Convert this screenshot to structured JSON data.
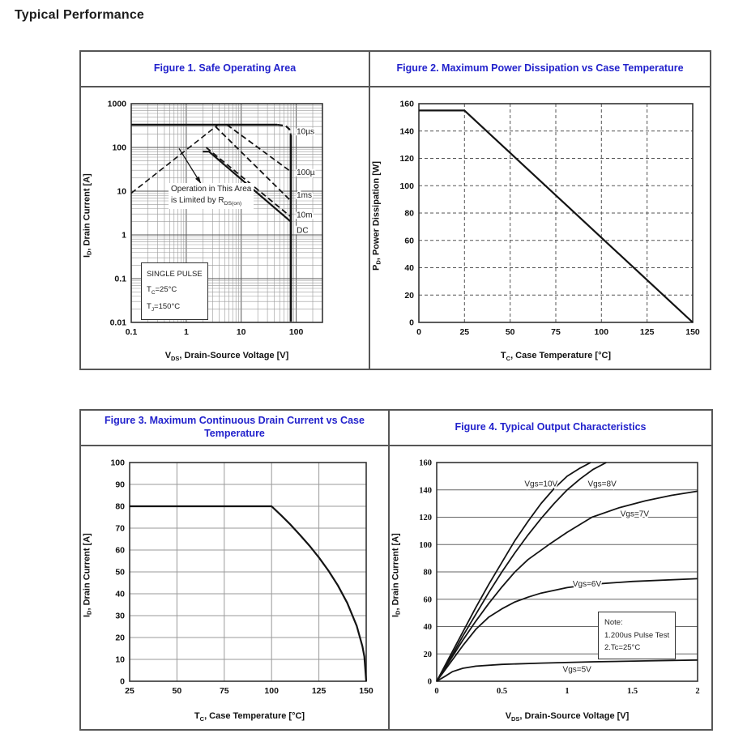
{
  "page": {
    "heading": "Typical Performance"
  },
  "figures": {
    "fig1": {
      "title": "Figure 1. Safe Operating Area",
      "xlabel": {
        "pre": "V",
        "sub": "DS",
        "rest": ", Drain-Source Voltage [V]"
      },
      "ylabel": {
        "pre": "I",
        "sub": "D",
        "rest": ", Drain Current [A]"
      },
      "annotation": {
        "line1": "Operation in This Area",
        "line2_pre": "is Limited by R",
        "line2_sub": "DS(on)"
      },
      "pulse_box": {
        "line1": "SINGLE PULSE",
        "line2_pre": "T",
        "line2_sub": "C",
        "line2_rest": "=25°C",
        "line3_pre": "T",
        "line3_sub": "J",
        "line3_rest": "=150°C"
      }
    },
    "fig2": {
      "title": "Figure 2. Maximum Power Dissipation vs Case Temperature",
      "xlabel": {
        "pre": "T",
        "sub": "C",
        "rest": ", Case Temperature [°C]"
      },
      "ylabel": {
        "pre": "P",
        "sub": "D",
        "rest": ", Power Dissipation [W]"
      }
    },
    "fig3": {
      "title": "Figure 3. Maximum Continuous Drain Current vs Case Temperature",
      "xlabel": {
        "pre": "T",
        "sub": "C",
        "rest": ", Case Temperature [°C]"
      },
      "ylabel": {
        "pre": "I",
        "sub": "D",
        "rest": ", Drain Current [A]"
      }
    },
    "fig4": {
      "title": "Figure 4. Typical Output Characteristics",
      "xlabel": {
        "pre": "V",
        "sub": "DS",
        "rest": ", Drain-Source Voltage [V]"
      },
      "ylabel": {
        "pre": "I",
        "sub": "D",
        "rest": ", Drain Current [A]"
      },
      "note_box": {
        "line1": "Note:",
        "line2": "1.200us Pulse Test",
        "line3": "2.Tc=25°C"
      }
    }
  },
  "chart_data": [
    {
      "id": "safe-operating-area",
      "type": "line",
      "title": "Figure 1. Safe Operating Area",
      "xlabel": "VDS, Drain-Source Voltage [V]",
      "ylabel": "ID, Drain Current [A]",
      "xscale": "log",
      "yscale": "log",
      "xlim": [
        0.1,
        300
      ],
      "ylim": [
        0.01,
        1000
      ],
      "xticks": [
        0.1,
        1,
        10,
        100
      ],
      "xtick_labels": [
        "0.1",
        "1",
        "10",
        "100"
      ],
      "yticks": [
        0.01,
        0.1,
        1,
        10,
        100,
        1000
      ],
      "ytick_labels": [
        "0.01",
        "0.1",
        "1",
        "10",
        "100",
        "1000"
      ],
      "grid": "log-minor",
      "legend": "none",
      "annotations": [
        "Operation in This Area is Limited by RDS(on)",
        "SINGLE PULSE TC=25°C TJ=150°C"
      ],
      "series": [
        {
          "name": "rdson-limit",
          "dash": true,
          "w": 1.6,
          "points": [
            [
              0.1,
              9
            ],
            [
              3.8,
              330
            ]
          ]
        },
        {
          "name": "pulse-cap",
          "dash": false,
          "w": 2.6,
          "points": [
            [
              0.1,
              330
            ],
            [
              45,
              330
            ]
          ]
        },
        {
          "name": "cap-knee",
          "dash": true,
          "w": 2.2,
          "points": [
            [
              45,
              330
            ],
            [
              64,
              312
            ],
            [
              75,
              262
            ],
            [
              80,
              190
            ]
          ]
        },
        {
          "name": "limit-100us",
          "dash": true,
          "w": 1.8,
          "points": [
            [
              5.5,
              330
            ],
            [
              80,
              28
            ]
          ]
        },
        {
          "name": "limit-1ms",
          "dash": true,
          "w": 1.8,
          "points": [
            [
              3.4,
              300
            ],
            [
              80,
              6
            ]
          ]
        },
        {
          "name": "limit-10ms",
          "dash": true,
          "w": 1.8,
          "points": [
            [
              2.3,
              100
            ],
            [
              80,
              2.6
            ]
          ]
        },
        {
          "name": "limit-dc",
          "dash": false,
          "w": 2.2,
          "points": [
            [
              2.0,
              80
            ],
            [
              2.6,
              80
            ],
            [
              80,
              2.0
            ]
          ]
        },
        {
          "name": "voltage-limit",
          "dash": false,
          "w": 2.8,
          "points": [
            [
              80,
              190
            ],
            [
              80,
              0.0105
            ]
          ]
        }
      ],
      "curve_labels": [
        {
          "text": "10µs",
          "fx": 0.865,
          "fy": 0.125
        },
        {
          "text": "100µ",
          "fx": 0.865,
          "fy": 0.3125
        },
        {
          "text": "1ms",
          "fx": 0.865,
          "fy": 0.417
        },
        {
          "text": "10m",
          "fx": 0.865,
          "fy": 0.507
        },
        {
          "text": "DC",
          "fx": 0.865,
          "fy": 0.578
        }
      ],
      "arrow": {
        "from_f": [
          0.25,
          0.205
        ],
        "to_f": [
          0.364,
          0.365
        ]
      }
    },
    {
      "id": "max-power-dissipation",
      "type": "line",
      "title": "Figure 2. Maximum Power Dissipation vs Case Temperature",
      "xlabel": "TC, Case Temperature [°C]",
      "ylabel": "PD, Power Dissipation [W]",
      "xlim": [
        0,
        150
      ],
      "ylim": [
        0,
        160
      ],
      "xticks": [
        0,
        25,
        50,
        75,
        100,
        125,
        150
      ],
      "yticks": [
        0,
        20,
        40,
        60,
        80,
        100,
        120,
        140,
        160
      ],
      "grid": "dashed",
      "legend": "none",
      "series": [
        {
          "name": "pd-max",
          "dash": false,
          "w": 2.2,
          "points": [
            [
              0,
              155
            ],
            [
              25,
              155
            ],
            [
              150,
              0
            ]
          ]
        }
      ]
    },
    {
      "id": "max-continuous-drain-current",
      "type": "line",
      "title": "Figure 3. Maximum Continuous Drain Current vs Case Temperature",
      "xlabel": "TC, Case Temperature [°C]",
      "ylabel": "ID, Drain Current [A]",
      "xlim": [
        25,
        150
      ],
      "ylim": [
        0,
        100
      ],
      "xticks": [
        25,
        50,
        75,
        100,
        125,
        150
      ],
      "yticks": [
        0,
        10,
        20,
        30,
        40,
        50,
        60,
        70,
        80,
        90,
        100
      ],
      "grid": "solid",
      "legend": "none",
      "series": [
        {
          "name": "id-max",
          "dash": false,
          "w": 2.2,
          "points": [
            [
              25,
              80
            ],
            [
              100,
              80
            ],
            [
              105,
              75.9
            ],
            [
              110,
              71.6
            ],
            [
              115,
              66.9
            ],
            [
              120,
              62
            ],
            [
              125,
              56.6
            ],
            [
              130,
              50.6
            ],
            [
              135,
              43.8
            ],
            [
              140,
              35.8
            ],
            [
              145,
              25.3
            ],
            [
              148,
              16
            ],
            [
              149,
              11.3
            ],
            [
              150,
              0
            ]
          ]
        }
      ]
    },
    {
      "id": "typical-output-characteristics",
      "type": "line",
      "title": "Figure 4. Typical Output Characteristics",
      "xlabel": "VDS, Drain-Source Voltage [V]",
      "ylabel": "ID, Drain Current [A]",
      "xlim": [
        0,
        2
      ],
      "ylim": [
        0,
        160
      ],
      "xticks": [
        0,
        0.5,
        1,
        1.5,
        2
      ],
      "xtick_labels": [
        "0",
        "0.5",
        "1",
        "1.5",
        "2"
      ],
      "yticks": [
        0,
        20,
        40,
        60,
        80,
        100,
        120,
        140,
        160
      ],
      "grid": "horizontal",
      "legend": "inline-labels",
      "annotations": [
        "Note: 1.200us Pulse Test 2.Tc=25°C"
      ],
      "series": [
        {
          "name": "vgs-10v",
          "label": "Vgs=10V",
          "dash": false,
          "w": 1.8,
          "points": [
            [
              0,
              0
            ],
            [
              0.1,
              18
            ],
            [
              0.2,
              36
            ],
            [
              0.3,
              54
            ],
            [
              0.4,
              71
            ],
            [
              0.5,
              87
            ],
            [
              0.6,
              103
            ],
            [
              0.7,
              117
            ],
            [
              0.8,
              130
            ],
            [
              0.9,
              141
            ],
            [
              1.0,
              150
            ],
            [
              1.1,
              156
            ],
            [
              1.18,
              160
            ]
          ]
        },
        {
          "name": "vgs-8v",
          "label": "Vgs=8V",
          "dash": false,
          "w": 1.8,
          "points": [
            [
              0,
              0
            ],
            [
              0.1,
              16
            ],
            [
              0.2,
              33
            ],
            [
              0.3,
              49
            ],
            [
              0.4,
              65
            ],
            [
              0.5,
              80
            ],
            [
              0.6,
              94
            ],
            [
              0.7,
              107
            ],
            [
              0.8,
              119
            ],
            [
              0.9,
              130
            ],
            [
              1.0,
              140
            ],
            [
              1.1,
              148
            ],
            [
              1.2,
              155
            ],
            [
              1.3,
              160
            ]
          ]
        },
        {
          "name": "vgs-7v",
          "label": "Vgs=7V",
          "dash": false,
          "w": 1.8,
          "points": [
            [
              0,
              0
            ],
            [
              0.1,
              15
            ],
            [
              0.2,
              30
            ],
            [
              0.3,
              44
            ],
            [
              0.4,
              57
            ],
            [
              0.5,
              69
            ],
            [
              0.6,
              80
            ],
            [
              0.7,
              89
            ],
            [
              0.86,
              100
            ],
            [
              1.0,
              109
            ],
            [
              1.19,
              120
            ],
            [
              1.4,
              127
            ],
            [
              1.6,
              132
            ],
            [
              1.8,
              136
            ],
            [
              2,
              139
            ]
          ]
        },
        {
          "name": "vgs-6v",
          "label": "Vgs=6V",
          "dash": false,
          "w": 1.8,
          "points": [
            [
              0,
              0
            ],
            [
              0.1,
              13
            ],
            [
              0.2,
              26
            ],
            [
              0.3,
              38
            ],
            [
              0.4,
              47
            ],
            [
              0.5,
              53
            ],
            [
              0.6,
              58
            ],
            [
              0.7,
              61.5
            ],
            [
              0.8,
              64.5
            ],
            [
              1.0,
              68.5
            ],
            [
              1.2,
              71
            ],
            [
              1.5,
              73
            ],
            [
              2,
              75
            ]
          ]
        },
        {
          "name": "vgs-5v",
          "label": "Vgs=5V",
          "dash": false,
          "w": 1.8,
          "points": [
            [
              0,
              0
            ],
            [
              0.07,
              4
            ],
            [
              0.12,
              7
            ],
            [
              0.2,
              9.5
            ],
            [
              0.3,
              11
            ],
            [
              0.5,
              12.3
            ],
            [
              0.8,
              13.3
            ],
            [
              1.2,
              14.2
            ],
            [
              1.6,
              14.9
            ],
            [
              2,
              15.5
            ]
          ]
        }
      ],
      "curve_labels": [
        {
          "text": "Vgs=10V",
          "fx": 0.4,
          "fy": 0.097,
          "anchor": "middle"
        },
        {
          "text": "Vgs=8V",
          "fx": 0.634,
          "fy": 0.097,
          "anchor": "middle"
        },
        {
          "text": "Vgs=7V",
          "fx": 0.759,
          "fy": 0.233,
          "anchor": "middle"
        },
        {
          "text": "Vgs=6V",
          "fx": 0.576,
          "fy": 0.553,
          "anchor": "middle"
        },
        {
          "text": "Vgs=5V",
          "fx": 0.538,
          "fy": 0.945,
          "anchor": "middle"
        }
      ]
    }
  ]
}
